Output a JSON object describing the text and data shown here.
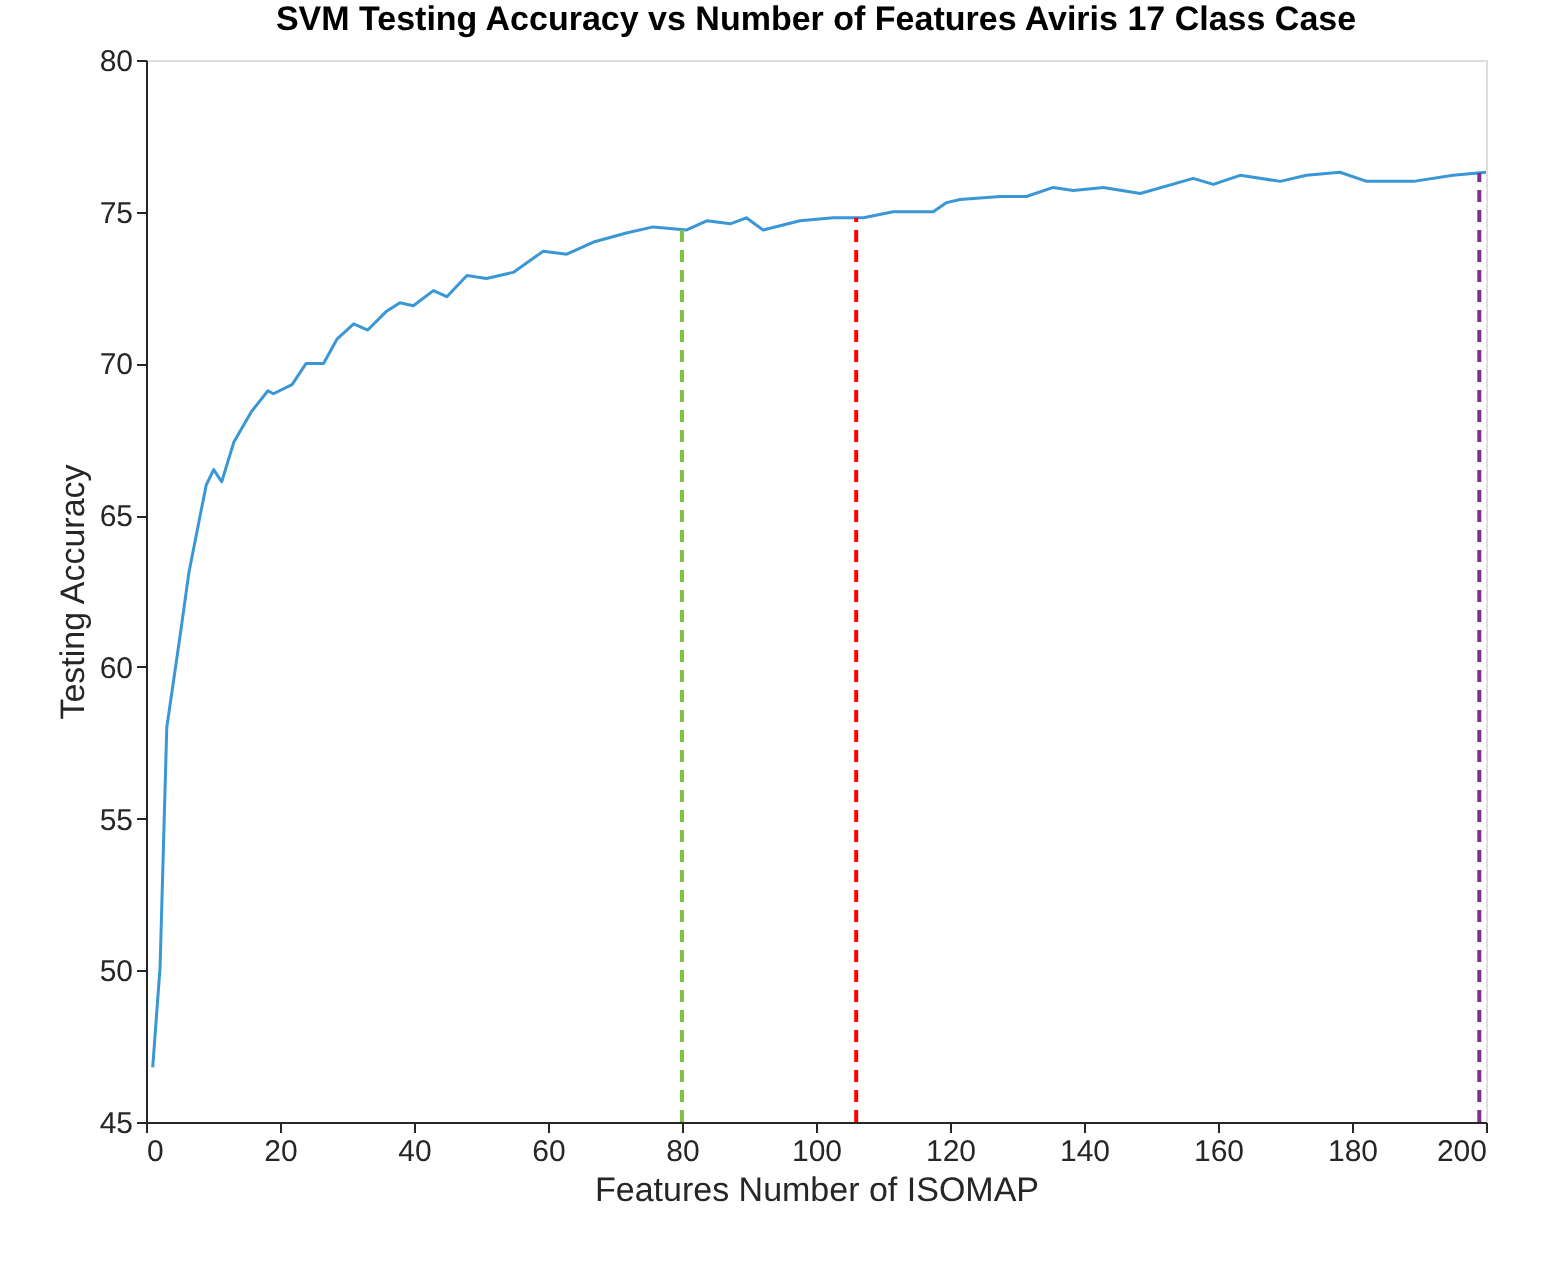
{
  "chart_data": {
    "type": "line",
    "title": "SVM Testing Accuracy vs Number of Features Aviris 17 Class Case",
    "xlabel": "Features Number of ISOMAP",
    "ylabel": "Testing Accuracy",
    "series": [
      {
        "color": "#3a97d6",
        "x": [
          1,
          2.1,
          3.1,
          5.2,
          6.4,
          8,
          9,
          10.1,
          11.3,
          13.1,
          15.7,
          18.2,
          19,
          21.8,
          23.9,
          26.5,
          28.5,
          31,
          33.1,
          35.8,
          37.9,
          39.9,
          42.9,
          44.9,
          47.9,
          50.8,
          54.8,
          59.3,
          62.8,
          66.8,
          71.7,
          75.7,
          80.7,
          83.7,
          87.2,
          89.6,
          92.1,
          97.6,
          102.6,
          107.1,
          111.5,
          117.5,
          119.5,
          121.5,
          127.5,
          131.4,
          135.4,
          138.4,
          142.9,
          148.4,
          156.3,
          159.3,
          163.3,
          169.3,
          173.2,
          178.2,
          182.2,
          189.2,
          195.1,
          200
        ],
        "values": [
          46.8,
          50.1,
          58.0,
          61.2,
          63.1,
          64.9,
          66.0,
          66.5,
          66.1,
          67.4,
          68.4,
          69.1,
          69.0,
          69.3,
          70.0,
          70.0,
          70.8,
          71.3,
          71.1,
          71.7,
          72.0,
          71.9,
          72.4,
          72.2,
          72.9,
          72.8,
          73.0,
          73.7,
          73.6,
          74.0,
          74.3,
          74.5,
          74.4,
          74.7,
          74.6,
          74.8,
          74.4,
          74.7,
          74.8,
          74.8,
          75.0,
          75.0,
          75.3,
          75.4,
          75.5,
          75.5,
          75.8,
          75.7,
          75.8,
          75.6,
          76.1,
          75.9,
          76.2,
          76.0,
          76.2,
          76.3,
          76.0,
          76.0,
          76.2,
          76.3
        ]
      }
    ],
    "xlim": [
      0,
      200
    ],
    "xticks": [
      0,
      20,
      40,
      60,
      80,
      100,
      120,
      140,
      160,
      180,
      200
    ],
    "ylim": [
      45,
      80
    ],
    "yticks": [
      45,
      50,
      55,
      60,
      65,
      70,
      75,
      80
    ],
    "grid": false,
    "marker": "none",
    "line_style": "solid",
    "ref_lines": [
      {
        "axis": "x",
        "value": 80,
        "color": "#7dc242",
        "line_style": "dashed"
      },
      {
        "axis": "x",
        "value": 106,
        "color": "#ff0000",
        "line_style": "dashed"
      },
      {
        "axis": "x",
        "value": 199,
        "color": "#7e2f8e",
        "line_style": "dashed"
      }
    ]
  }
}
